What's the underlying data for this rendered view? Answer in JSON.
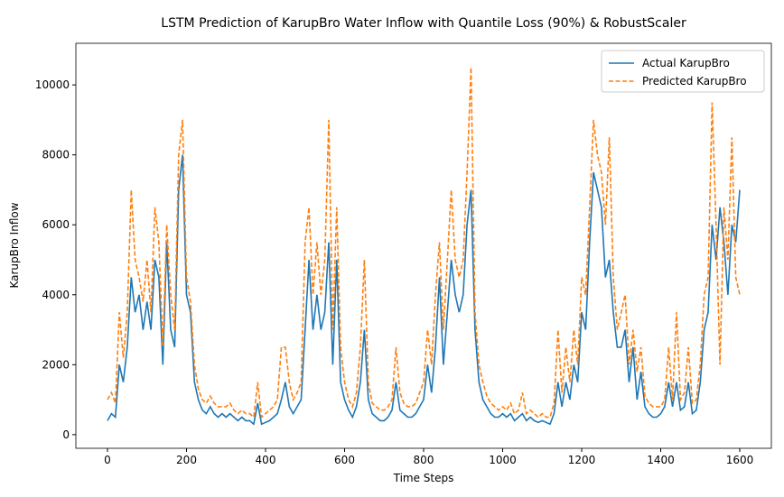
{
  "chart_data": {
    "type": "line",
    "title": "LSTM Prediction of KarupBro Water Inflow with Quantile Loss (90%) & RobustScaler",
    "xlabel": "Time Steps",
    "ylabel": "KarupBro Inflow",
    "x": [
      0,
      10,
      20,
      30,
      40,
      50,
      60,
      70,
      80,
      90,
      100,
      110,
      120,
      130,
      140,
      150,
      160,
      170,
      180,
      190,
      200,
      210,
      220,
      230,
      240,
      250,
      260,
      270,
      280,
      290,
      300,
      310,
      320,
      330,
      340,
      350,
      360,
      370,
      380,
      390,
      400,
      410,
      420,
      430,
      440,
      450,
      460,
      470,
      480,
      490,
      500,
      510,
      520,
      530,
      540,
      550,
      560,
      570,
      580,
      590,
      600,
      610,
      620,
      630,
      640,
      650,
      660,
      670,
      680,
      690,
      700,
      710,
      720,
      730,
      740,
      750,
      760,
      770,
      780,
      790,
      800,
      810,
      820,
      830,
      840,
      850,
      860,
      870,
      880,
      890,
      900,
      910,
      920,
      930,
      940,
      950,
      960,
      970,
      980,
      990,
      1000,
      1010,
      1020,
      1030,
      1040,
      1050,
      1060,
      1070,
      1080,
      1090,
      1100,
      1110,
      1120,
      1130,
      1140,
      1150,
      1160,
      1170,
      1180,
      1190,
      1200,
      1210,
      1220,
      1230,
      1240,
      1250,
      1260,
      1270,
      1280,
      1290,
      1300,
      1310,
      1320,
      1330,
      1340,
      1350,
      1360,
      1370,
      1380,
      1390,
      1400,
      1410,
      1420,
      1430,
      1440,
      1450,
      1460,
      1470,
      1480,
      1490,
      1500,
      1510,
      1520,
      1530,
      1540,
      1550,
      1560,
      1570,
      1580,
      1590,
      1600
    ],
    "series": [
      {
        "name": "Actual KarupBro",
        "color": "#1f77b4",
        "dash": false,
        "values": [
          400,
          600,
          500,
          2000,
          1500,
          2500,
          4500,
          3500,
          4000,
          3000,
          3800,
          3000,
          5000,
          4500,
          2000,
          5500,
          3000,
          2500,
          7000,
          8000,
          4000,
          3500,
          1500,
          1000,
          700,
          600,
          800,
          600,
          500,
          600,
          500,
          600,
          500,
          400,
          500,
          400,
          400,
          300,
          900,
          300,
          350,
          400,
          500,
          600,
          1000,
          1500,
          800,
          600,
          800,
          1000,
          3000,
          5000,
          3000,
          4000,
          3000,
          3500,
          5500,
          2000,
          5000,
          1500,
          1000,
          700,
          500,
          800,
          1500,
          3000,
          1000,
          600,
          500,
          400,
          400,
          500,
          700,
          1500,
          700,
          600,
          500,
          500,
          600,
          800,
          1000,
          2000,
          1200,
          2500,
          4500,
          2000,
          3500,
          5000,
          4000,
          3500,
          4000,
          6000,
          7000,
          3000,
          1500,
          1000,
          800,
          600,
          500,
          500,
          600,
          500,
          600,
          400,
          500,
          600,
          400,
          500,
          400,
          350,
          400,
          350,
          300,
          600,
          1500,
          800,
          1500,
          1000,
          2000,
          1500,
          3500,
          3000,
          5500,
          7500,
          7000,
          6500,
          4500,
          5000,
          3500,
          2500,
          2500,
          3000,
          1500,
          2500,
          1000,
          1800,
          800,
          600,
          500,
          500,
          600,
          800,
          1500,
          800,
          1500,
          700,
          800,
          1500,
          600,
          700,
          1500,
          3000,
          3500,
          6000,
          5000,
          6500,
          5500,
          4000,
          6000,
          5500,
          7000
        ]
      },
      {
        "name": "Predicted KarupBro",
        "color": "#ff7f0e",
        "dash": true,
        "values": [
          1000,
          1200,
          900,
          3500,
          2200,
          3500,
          7000,
          5000,
          4500,
          3800,
          5000,
          3500,
          6500,
          5500,
          2500,
          6000,
          4000,
          3000,
          8000,
          9000,
          4500,
          3800,
          2000,
          1300,
          1000,
          900,
          1100,
          900,
          800,
          800,
          800,
          900,
          700,
          600,
          700,
          600,
          600,
          500,
          1500,
          500,
          600,
          700,
          800,
          1000,
          2500,
          2500,
          1500,
          1000,
          1200,
          1500,
          5500,
          6500,
          4000,
          5500,
          4000,
          5000,
          9000,
          3000,
          6500,
          2500,
          1500,
          1000,
          800,
          1200,
          2500,
          5000,
          1500,
          900,
          800,
          700,
          700,
          800,
          1000,
          2500,
          1200,
          900,
          800,
          800,
          900,
          1200,
          1500,
          3000,
          2000,
          4000,
          5500,
          3000,
          5000,
          7000,
          5000,
          4500,
          5000,
          7500,
          10500,
          3500,
          2000,
          1500,
          1100,
          900,
          800,
          700,
          800,
          700,
          900,
          600,
          700,
          1200,
          600,
          700,
          600,
          500,
          600,
          500,
          500,
          900,
          3000,
          1200,
          2500,
          1500,
          3000,
          2000,
          4500,
          4000,
          6500,
          9000,
          8000,
          7500,
          6000,
          8500,
          4500,
          3000,
          3500,
          4000,
          2000,
          3000,
          1800,
          2500,
          1100,
          900,
          800,
          800,
          800,
          1000,
          2500,
          1000,
          3500,
          1000,
          1200,
          2500,
          900,
          1000,
          2000,
          4000,
          4500,
          9500,
          6000,
          2000,
          6500,
          5000,
          8500,
          4500,
          4000
        ]
      }
    ],
    "xlim": [
      -80,
      1680
    ],
    "ylim": [
      -390,
      11190
    ],
    "xticks": [
      0,
      200,
      400,
      600,
      800,
      1000,
      1200,
      1400,
      1600
    ],
    "yticks": [
      0,
      2000,
      4000,
      6000,
      8000,
      10000
    ],
    "legend": "upper right"
  }
}
